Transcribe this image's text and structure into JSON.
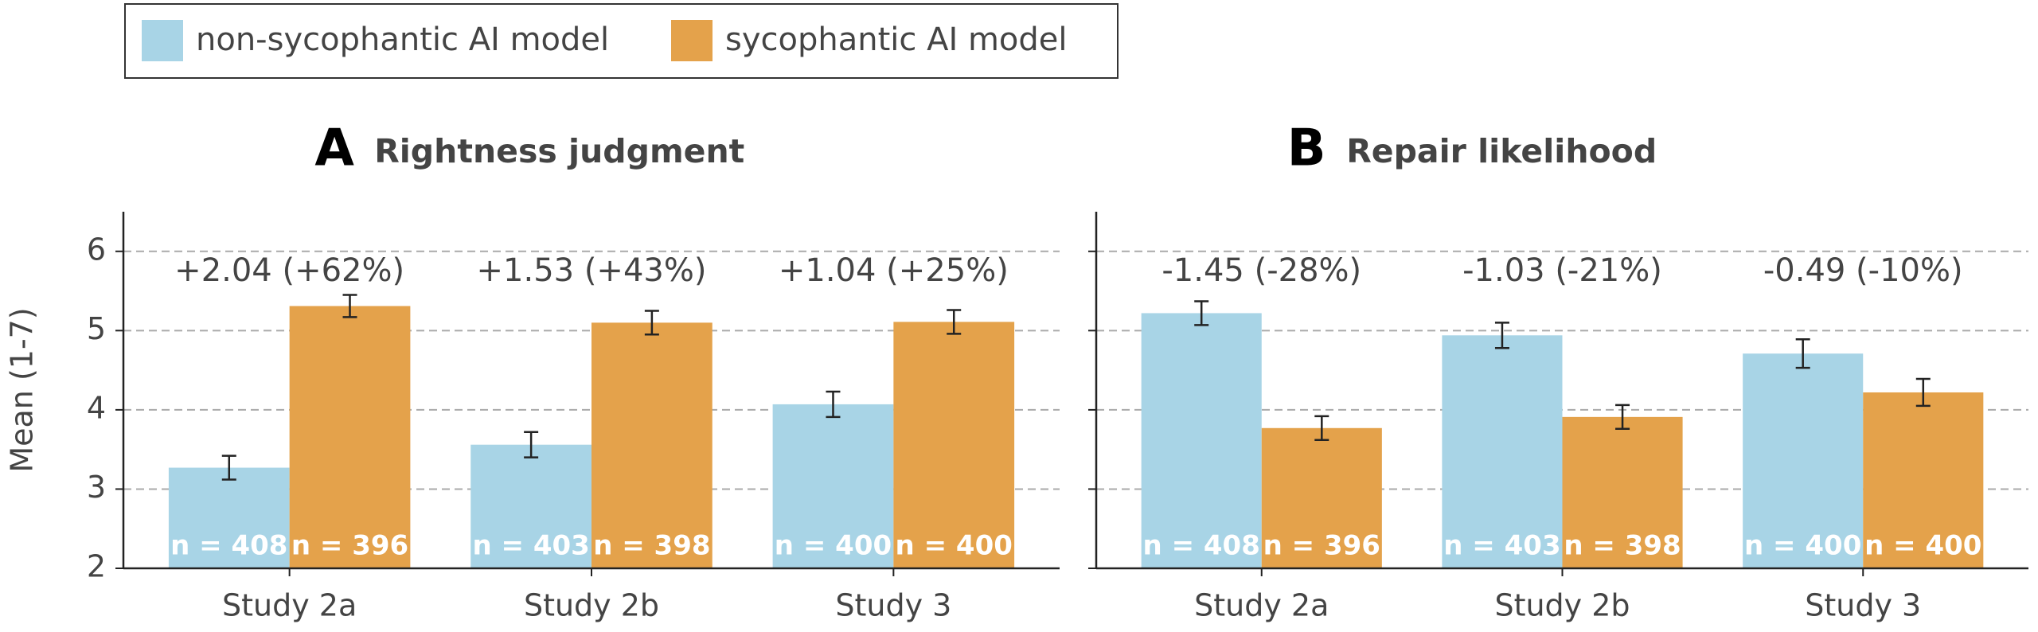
{
  "chart_data": [
    {
      "type": "bar",
      "panel": "A",
      "title": "Rightness judgment",
      "y_label": "Mean (1-7)",
      "categories": [
        "Study 2a",
        "Study 2b",
        "Study 3"
      ],
      "annotations": [
        "+2.04 (+62%)",
        "+1.53 (+43%)",
        "+1.04 (+25%)"
      ],
      "series": [
        {
          "name": "non-sycophantic AI model",
          "color": "#a8d4e6",
          "values": [
            3.27,
            3.56,
            4.07
          ],
          "errors": [
            0.15,
            0.16,
            0.16
          ],
          "n_labels": [
            "n = 408",
            "n = 403",
            "n = 400"
          ]
        },
        {
          "name": "sycophantic AI model",
          "color": "#e4a24b",
          "values": [
            5.31,
            5.1,
            5.11
          ],
          "errors": [
            0.14,
            0.15,
            0.15
          ],
          "n_labels": [
            "n = 396",
            "n = 398",
            "n = 400"
          ]
        }
      ],
      "ylim": [
        2,
        6.5
      ],
      "yticks": [
        2,
        3,
        4,
        5,
        6
      ],
      "grid": true
    },
    {
      "type": "bar",
      "panel": "B",
      "title": "Repair likelihood",
      "categories": [
        "Study 2a",
        "Study 2b",
        "Study 3"
      ],
      "annotations": [
        "-1.45 (-28%)",
        "-1.03 (-21%)",
        "-0.49 (-10%)"
      ],
      "series": [
        {
          "color": "#a8d4e6",
          "values": [
            5.22,
            4.94,
            4.71
          ],
          "errors": [
            0.15,
            0.16,
            0.18
          ],
          "n_labels": [
            "n = 408",
            "n = 403",
            "n = 400"
          ]
        },
        {
          "color": "#e4a24b",
          "values": [
            3.77,
            3.91,
            4.22
          ],
          "errors": [
            0.15,
            0.15,
            0.17
          ],
          "n_labels": [
            "n = 396",
            "n = 398",
            "n = 400"
          ]
        }
      ],
      "ylim": [
        2,
        6.5
      ],
      "yticks": [
        2,
        3,
        4,
        5,
        6
      ],
      "grid": true
    }
  ]
}
